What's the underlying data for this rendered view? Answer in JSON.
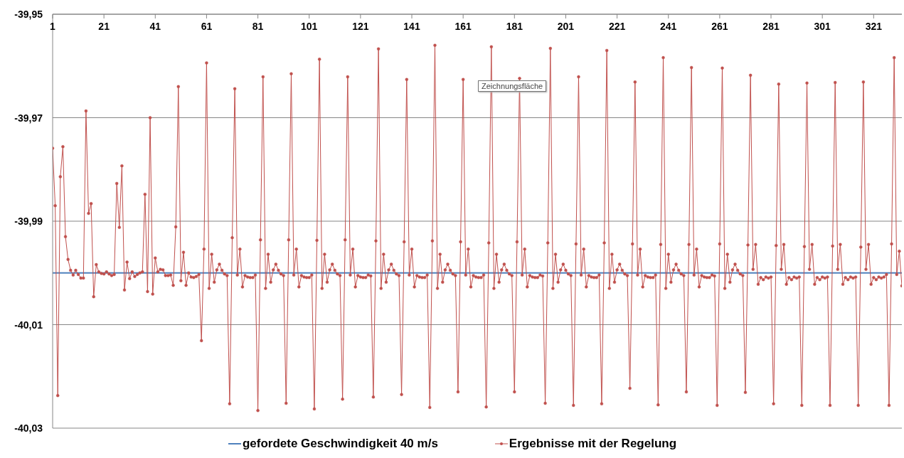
{
  "chart_data": {
    "type": "line",
    "xlim": [
      1,
      332
    ],
    "xticks": [
      1,
      21,
      41,
      61,
      81,
      101,
      121,
      141,
      161,
      181,
      201,
      221,
      241,
      261,
      281,
      301,
      321
    ],
    "ylim": [
      -40.03,
      -39.95
    ],
    "yticks": [
      {
        "value": -40.03,
        "label": "-40,03"
      },
      {
        "value": -40.01,
        "label": "-40,01"
      },
      {
        "value": -39.99,
        "label": "-39,99"
      },
      {
        "value": -39.97,
        "label": "-39,97"
      },
      {
        "value": -39.95,
        "label": "-39,95"
      }
    ],
    "grid": "y",
    "legend": "bottom",
    "annotations": [
      "Zeichnungsfläche"
    ],
    "series": [
      {
        "name": "gefordete Geschwindigkeit 40 m/s",
        "color": "#4f81bd",
        "marker": "none",
        "x": [
          1,
          332
        ],
        "values": [
          -40,
          -40
        ]
      },
      {
        "name": "Ergebnisse mit der Regelung",
        "color": "#c0504d",
        "marker": "circle",
        "x": [
          1,
          2,
          3,
          4,
          5,
          6,
          7,
          8,
          9,
          10,
          11,
          12,
          13,
          14,
          15,
          16,
          17,
          18,
          19,
          20,
          21,
          22,
          23,
          24,
          25,
          26,
          27,
          28,
          29,
          30,
          31,
          32,
          33,
          34,
          35,
          36,
          37,
          38,
          39,
          40,
          41,
          42,
          43,
          44,
          45,
          46,
          47,
          48,
          49,
          50,
          51,
          52,
          53,
          54,
          55,
          56,
          57,
          58,
          59,
          60,
          61,
          62,
          63,
          64,
          65,
          66,
          67,
          68,
          69,
          70,
          71,
          72,
          73,
          74,
          75,
          76,
          77,
          78,
          79,
          80,
          81,
          82,
          83,
          84,
          85,
          86,
          87,
          88,
          89,
          90,
          91,
          92,
          93,
          94,
          95,
          96,
          97,
          98,
          99,
          100,
          101,
          102,
          103,
          104,
          105,
          106,
          107,
          108,
          109,
          110,
          111,
          112,
          113,
          114,
          115,
          116,
          117,
          118,
          119,
          120,
          121,
          122,
          123,
          124,
          125,
          126,
          127,
          128,
          129,
          130,
          131,
          132,
          133,
          134,
          135,
          136,
          137,
          138,
          139,
          140,
          141,
          142,
          143,
          144,
          145,
          146,
          147,
          148,
          149,
          150,
          151,
          152,
          153,
          154,
          155,
          156,
          157,
          158,
          159,
          160,
          161,
          162,
          163,
          164,
          165,
          166,
          167,
          168,
          169,
          170,
          171,
          172,
          173,
          174,
          175,
          176,
          177,
          178,
          179,
          180,
          181,
          182,
          183,
          184,
          185,
          186,
          187,
          188,
          189,
          190,
          191,
          192,
          193,
          194,
          195,
          196,
          197,
          198,
          199,
          200,
          201,
          202,
          203,
          204,
          205,
          206,
          207,
          208,
          209,
          210,
          211,
          212,
          213,
          214,
          215,
          216,
          217,
          218,
          219,
          220,
          221,
          222,
          223,
          224,
          225,
          226,
          227,
          228,
          229,
          230,
          231,
          232,
          233,
          234,
          235,
          236,
          237,
          238,
          239,
          240,
          241,
          242,
          243,
          244,
          245,
          246,
          247,
          248,
          249,
          250,
          251,
          252,
          253,
          254,
          255,
          256,
          257,
          258,
          259,
          260,
          261,
          262,
          263,
          264,
          265,
          266,
          267,
          268,
          269,
          270,
          271,
          272,
          273,
          274,
          275,
          276,
          277,
          278,
          279,
          280,
          281,
          282,
          283,
          284,
          285,
          286,
          287,
          288,
          289,
          290,
          291,
          292,
          293,
          294,
          295,
          296,
          297,
          298,
          299,
          300,
          301,
          302,
          303,
          304,
          305,
          306,
          307,
          308,
          309,
          310,
          311,
          312,
          313,
          314,
          315,
          316,
          317,
          318,
          319,
          320,
          321,
          322,
          323,
          324,
          325,
          326,
          327,
          328,
          329,
          330,
          331,
          332
        ],
        "values": [
          -39.9759,
          -39.987,
          -40.0237,
          -39.9814,
          -39.9756,
          -39.993,
          -39.9974,
          -39.9995,
          -40.0004,
          -39.9995,
          -40.0003,
          -40.001,
          -40.001,
          -39.9687,
          -39.9885,
          -39.9866,
          -40.0046,
          -39.9984,
          -39.9998,
          -40.0001,
          -40.0002,
          -39.9998,
          -40.0002,
          -40.0005,
          -40.0003,
          -39.9827,
          -39.9912,
          -39.9793,
          -40.0033,
          -39.9979,
          -40.0011,
          -39.9998,
          -40.0007,
          -40.0003,
          -40.0,
          -39.9998,
          -39.9848,
          -40.0036,
          -39.97,
          -40.0041,
          -39.9971,
          -39.9998,
          -39.9993,
          -39.9994,
          -40.0005,
          -40.0005,
          -40.0004,
          -40.0024,
          -39.9911,
          -39.964,
          -40.0015,
          -39.996,
          -40.0024,
          -40.0,
          -40.0008,
          -40.0009,
          -40.0007,
          -40.0003,
          -40.0131,
          -39.9954,
          -39.9594,
          -40.003,
          -39.9964,
          -40.0018,
          -39.9994,
          -39.9983,
          -39.9995,
          -40.0002,
          -40.0005,
          -40.0253,
          -39.9932,
          -39.9644,
          -40.0004,
          -39.9954,
          -40.0027,
          -40.0005,
          -40.0008,
          -40.0009,
          -40.0009,
          -40.0004,
          -40.0266,
          -39.9936,
          -39.9621,
          -40.003,
          -39.9964,
          -40.0018,
          -39.9994,
          -39.9983,
          -39.9995,
          -40.0002,
          -40.0005,
          -40.0252,
          -39.9936,
          -39.9615,
          -40.0004,
          -39.9954,
          -40.0027,
          -40.0005,
          -40.0008,
          -40.0009,
          -40.0009,
          -40.0004,
          -40.0263,
          -39.9937,
          -39.9587,
          -40.003,
          -39.9964,
          -40.0018,
          -39.9994,
          -39.9983,
          -39.9995,
          -40.0002,
          -40.0005,
          -40.0244,
          -39.9936,
          -39.9621,
          -40.0004,
          -39.9954,
          -40.0027,
          -40.0005,
          -40.0008,
          -40.0009,
          -40.0009,
          -40.0004,
          -40.0006,
          -40.024,
          -39.9938,
          -39.9567,
          -40.003,
          -39.9964,
          -40.0018,
          -39.9994,
          -39.9983,
          -39.9995,
          -40.0002,
          -40.0005,
          -40.0235,
          -39.994,
          -39.9626,
          -40.0004,
          -39.9954,
          -40.0027,
          -40.0005,
          -40.0008,
          -40.0009,
          -40.0009,
          -40.0004,
          -40.026,
          -39.9938,
          -39.956,
          -40.003,
          -39.9964,
          -40.0018,
          -39.9994,
          -39.9983,
          -39.9995,
          -40.0002,
          -40.0005,
          -40.023,
          -39.994,
          -39.9626,
          -40.0004,
          -39.9954,
          -40.0027,
          -40.0005,
          -40.0008,
          -40.0009,
          -40.0009,
          -40.0004,
          -40.0259,
          -39.9942,
          -39.9563,
          -40.003,
          -39.9964,
          -40.0018,
          -39.9994,
          -39.9983,
          -39.9995,
          -40.0002,
          -40.0005,
          -40.023,
          -39.994,
          -39.9624,
          -40.0004,
          -39.9954,
          -40.0027,
          -40.0005,
          -40.0008,
          -40.0009,
          -40.0009,
          -40.0004,
          -40.0006,
          -40.0252,
          -39.9942,
          -39.9566,
          -40.003,
          -39.9964,
          -40.0018,
          -39.9994,
          -39.9983,
          -39.9995,
          -40.0002,
          -40.0005,
          -40.0256,
          -39.9944,
          -39.9621,
          -40.0004,
          -39.9954,
          -40.0027,
          -40.0005,
          -40.0008,
          -40.0009,
          -40.0009,
          -40.0004,
          -40.0253,
          -39.9942,
          -39.957,
          -40.003,
          -39.9964,
          -40.0018,
          -39.9994,
          -39.9983,
          -39.9995,
          -40.0002,
          -40.0005,
          -40.0223,
          -39.9944,
          -39.9631,
          -40.0004,
          -39.9954,
          -40.0027,
          -40.0005,
          -40.0008,
          -40.0009,
          -40.0009,
          -40.0004,
          -40.0255,
          -39.9945,
          -39.9584,
          -40.003,
          -39.9964,
          -40.0018,
          -39.9994,
          -39.9983,
          -39.9995,
          -40.0002,
          -40.0005,
          -40.023,
          -39.9945,
          -39.9603,
          -40.0004,
          -39.9954,
          -40.0027,
          -40.0005,
          -40.0008,
          -40.0009,
          -40.0009,
          -40.0004,
          -40.0006,
          -40.0256,
          -39.9944,
          -39.9604,
          -40.003,
          -39.9964,
          -40.0018,
          -39.9994,
          -39.9983,
          -39.9995,
          -40.0002,
          -40.0005,
          -40.0231,
          -39.9946,
          -39.9618,
          -39.9993,
          -39.9945,
          -40.0022,
          -40.0009,
          -40.0013,
          -40.0008,
          -40.001,
          -40.0008,
          -40.0253,
          -39.9947,
          -39.9635,
          -39.9993,
          -39.9945,
          -40.0022,
          -40.0009,
          -40.0013,
          -40.0008,
          -40.001,
          -40.0008,
          -40.0256,
          -39.9949,
          -39.9633,
          -39.9993,
          -39.9945,
          -40.0022,
          -40.0009,
          -40.0013,
          -40.0008,
          -40.001,
          -40.0008,
          -40.0256,
          -39.9948,
          -39.9632,
          -39.9993,
          -39.9945,
          -40.0022,
          -40.0009,
          -40.0013,
          -40.0008,
          -40.001,
          -40.0008,
          -40.0256,
          -39.995,
          -39.9631,
          -39.9993,
          -39.9945,
          -40.0022,
          -40.0009,
          -40.0013,
          -40.0008,
          -40.001,
          -40.0008,
          -40.0003,
          -40.0256,
          -39.9944,
          -39.9584,
          -40.0003,
          -39.9958,
          -40.0025
        ]
      }
    ]
  }
}
